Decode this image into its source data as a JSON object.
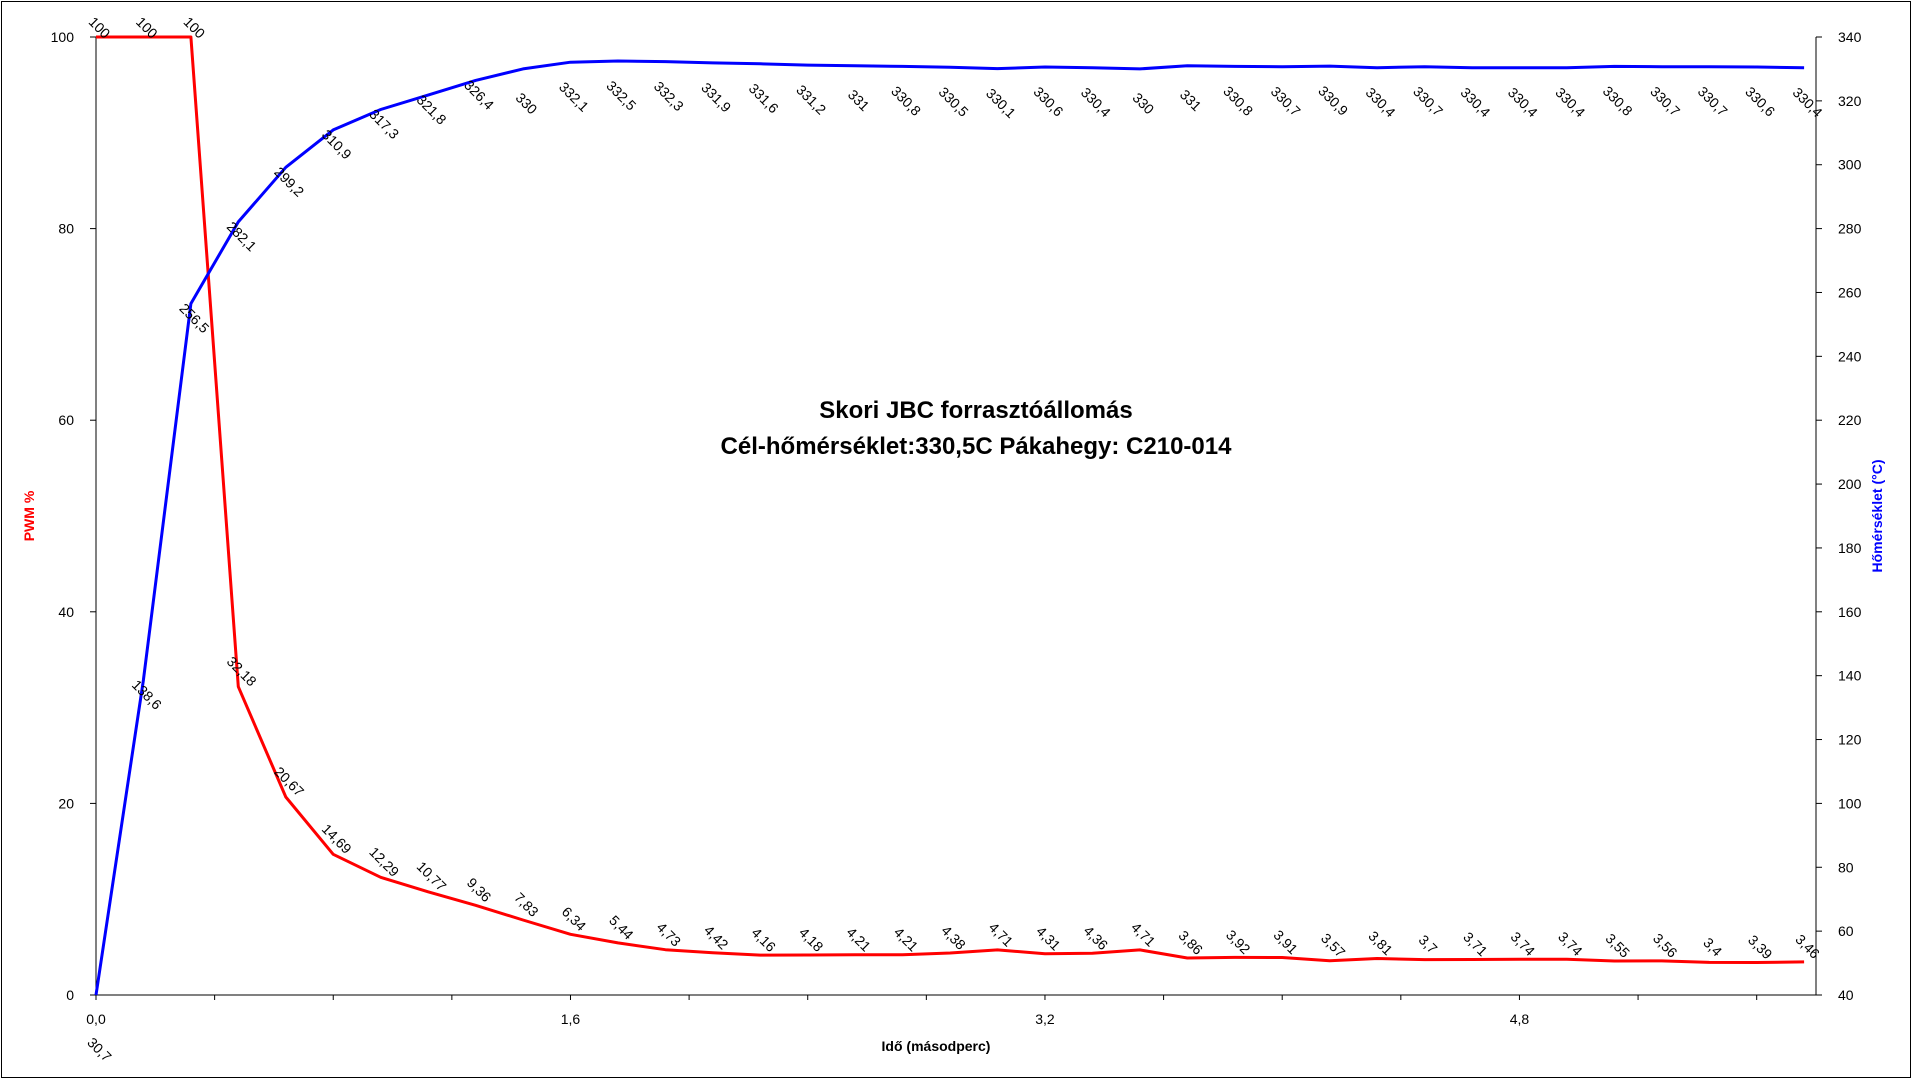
{
  "chart_data": {
    "type": "line",
    "title": [
      "Skori JBC forrasztóállomás",
      "Cél-hőmérséklet:330,5C Pákahegy: C210-014"
    ],
    "xlabel": "Idő (másodperc)",
    "ylabel_left": "PWM %",
    "ylabel_right": "Hőmérséklet (°C)",
    "xlim": [
      0,
      5.8
    ],
    "x_ticks": [
      "0,0",
      "1,6",
      "3,2",
      "4,8"
    ],
    "x_tick_values": [
      0,
      1.6,
      3.2,
      4.8
    ],
    "ylim_left": [
      0,
      100
    ],
    "y_ticks_left": [
      "0",
      "20",
      "40",
      "60",
      "80",
      "100"
    ],
    "ylim_right": [
      40,
      340
    ],
    "y_ticks_right": [
      "40",
      "60",
      "80",
      "100",
      "120",
      "140",
      "160",
      "180",
      "200",
      "220",
      "240",
      "260",
      "280",
      "300",
      "320",
      "340"
    ],
    "grid": false,
    "legend": "none",
    "series": [
      {
        "name": "PWM %",
        "axis": "left",
        "color": "#ff0000",
        "x": [
          0,
          0.16,
          0.32,
          0.48,
          0.64,
          0.8,
          0.96,
          1.12,
          1.28,
          1.44,
          1.6,
          1.76,
          1.92,
          2.08,
          2.24,
          2.4,
          2.56,
          2.72,
          2.88,
          3.04,
          3.2,
          3.36,
          3.52,
          3.68,
          3.84,
          4.0,
          4.16,
          4.32,
          4.48,
          4.64,
          4.8,
          4.96,
          5.12,
          5.28,
          5.44,
          5.6,
          5.76
        ],
        "values": [
          100,
          100,
          100,
          32.18,
          20.67,
          14.69,
          12.29,
          10.77,
          9.36,
          7.83,
          6.34,
          5.44,
          4.73,
          4.42,
          4.16,
          4.18,
          4.21,
          4.21,
          4.38,
          4.71,
          4.31,
          4.36,
          4.71,
          3.86,
          3.92,
          3.91,
          3.57,
          3.81,
          3.7,
          3.71,
          3.74,
          3.74,
          3.55,
          3.56,
          3.4,
          3.39,
          3.46
        ],
        "labels": [
          "100",
          "100",
          "100",
          "32,18",
          "20,67",
          "14,69",
          "12,29",
          "10,77",
          "9,36",
          "7,83",
          "6,34",
          "5,44",
          "4,73",
          "4,42",
          "4,16",
          "4,18",
          "4,21",
          "4,21",
          "4,38",
          "4,71",
          "4,31",
          "4,36",
          "4,71",
          "3,86",
          "3,92",
          "3,91",
          "3,57",
          "3,81",
          "3,7",
          "3,71",
          "3,74",
          "3,74",
          "3,55",
          "3,56",
          "3,4",
          "3,39",
          "3,46"
        ]
      },
      {
        "name": "Hőmérséklet (°C)",
        "axis": "right",
        "color": "#0000ff",
        "x": [
          0,
          0.16,
          0.32,
          0.48,
          0.64,
          0.8,
          0.96,
          1.12,
          1.28,
          1.44,
          1.6,
          1.76,
          1.92,
          2.08,
          2.24,
          2.4,
          2.56,
          2.72,
          2.88,
          3.04,
          3.2,
          3.36,
          3.52,
          3.68,
          3.84,
          4.0,
          4.16,
          4.32,
          4.48,
          4.64,
          4.8,
          4.96,
          5.12,
          5.28,
          5.44,
          5.6,
          5.76
        ],
        "values": [
          30.7,
          138.6,
          256.5,
          282.1,
          299.2,
          310.9,
          317.3,
          321.8,
          326.4,
          330,
          332.1,
          332.5,
          332.3,
          331.9,
          331.6,
          331.2,
          331,
          330.8,
          330.5,
          330.1,
          330.6,
          330.4,
          330,
          331,
          330.8,
          330.7,
          330.9,
          330.4,
          330.7,
          330.4,
          330.4,
          330.4,
          330.8,
          330.7,
          330.7,
          330.6,
          330.4
        ],
        "labels": [
          "30,7",
          "138,6",
          "256,5",
          "282,1",
          "299,2",
          "310,9",
          "317,3",
          "321,8",
          "326,4",
          "330",
          "332,1",
          "332,5",
          "332,3",
          "331,9",
          "331,6",
          "331,2",
          "331",
          "330,8",
          "330,5",
          "330,1",
          "330,6",
          "330,4",
          "330",
          "331",
          "330,8",
          "330,7",
          "330,9",
          "330,4",
          "330,7",
          "330,4",
          "330,4",
          "330,4",
          "330,8",
          "330,7",
          "330,7",
          "330,6",
          "330,4"
        ]
      }
    ]
  }
}
